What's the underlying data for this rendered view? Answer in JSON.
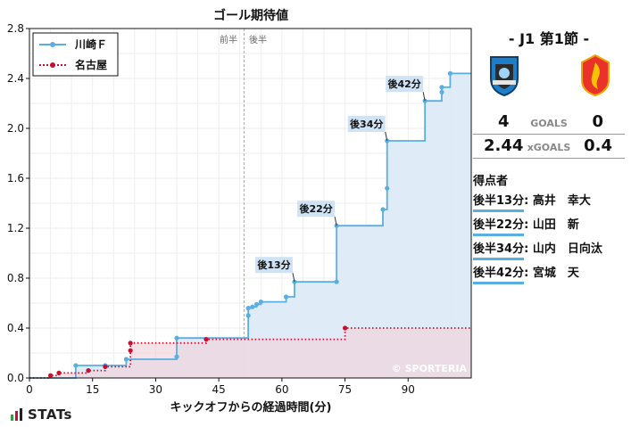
{
  "chart_data": {
    "type": "line",
    "title": "ゴール期待値",
    "xlabel": "キックオフからの経過時間(分)",
    "ylabel": "",
    "xlim": [
      0,
      105
    ],
    "ylim": [
      0,
      2.8
    ],
    "xticks": [
      "0",
      "15",
      "30",
      "45",
      "60",
      "75",
      "90"
    ],
    "yticks": [
      "0.0",
      "0.4",
      "0.8",
      "1.2",
      "1.6",
      "2.0",
      "2.4",
      "2.8"
    ],
    "grid": true,
    "legend_position": "top-left",
    "halftime": {
      "minute": 51,
      "left_label": "前半",
      "right_label": "後半"
    },
    "watermark": "© SPORTERIA",
    "series": [
      {
        "name": "川崎Ｆ",
        "color": "#5aaee0",
        "fill": "#dceaf7",
        "style": "solid",
        "x": [
          0,
          11,
          18,
          23,
          35,
          35,
          52,
          52,
          53,
          54,
          55,
          61,
          63,
          73,
          73,
          84,
          85,
          85,
          94,
          98,
          98,
          100,
          105
        ],
        "y": [
          0.0,
          0.1,
          0.1,
          0.15,
          0.17,
          0.32,
          0.5,
          0.56,
          0.57,
          0.59,
          0.61,
          0.65,
          0.77,
          0.77,
          1.22,
          1.35,
          1.52,
          1.9,
          2.22,
          2.29,
          2.33,
          2.44,
          2.44
        ]
      },
      {
        "name": "名古屋",
        "color": "#c8102e",
        "fill": "#f2d0d7",
        "style": "dotted",
        "x": [
          0,
          5,
          7,
          14,
          18,
          24,
          24,
          42,
          75,
          105
        ],
        "y": [
          0.0,
          0.02,
          0.04,
          0.06,
          0.09,
          0.22,
          0.28,
          0.31,
          0.4,
          0.4
        ]
      }
    ],
    "annotations": [
      {
        "label": "後13分",
        "x": 63,
        "y": 0.77
      },
      {
        "label": "後22分",
        "x": 73,
        "y": 1.22
      },
      {
        "label": "後34分",
        "x": 85,
        "y": 1.9
      },
      {
        "label": "後42分",
        "x": 94,
        "y": 2.22
      }
    ]
  },
  "panel": {
    "match_title": "- J1 第1節 -",
    "goals_label": "GOALS",
    "home_goals": "4",
    "away_goals": "0",
    "xgoals_label": "xGOALS",
    "home_xg": "2.44",
    "away_xg": "0.4",
    "scorers_title": "得点者",
    "scorers": [
      {
        "time": "後半13分",
        "name": ": 高井　幸大"
      },
      {
        "time": "後半22分",
        "name": ": 山田　新"
      },
      {
        "time": "後半34分",
        "name": ": 山内　日向汰"
      },
      {
        "time": "後半42分",
        "name": ": 宮城　天"
      }
    ]
  },
  "footer": {
    "brand": "STATs"
  },
  "colors": {
    "home": "#5aaee0",
    "away": "#c8102e",
    "home_crest": "#1e7fc8",
    "away_crest": "#e8322a"
  }
}
